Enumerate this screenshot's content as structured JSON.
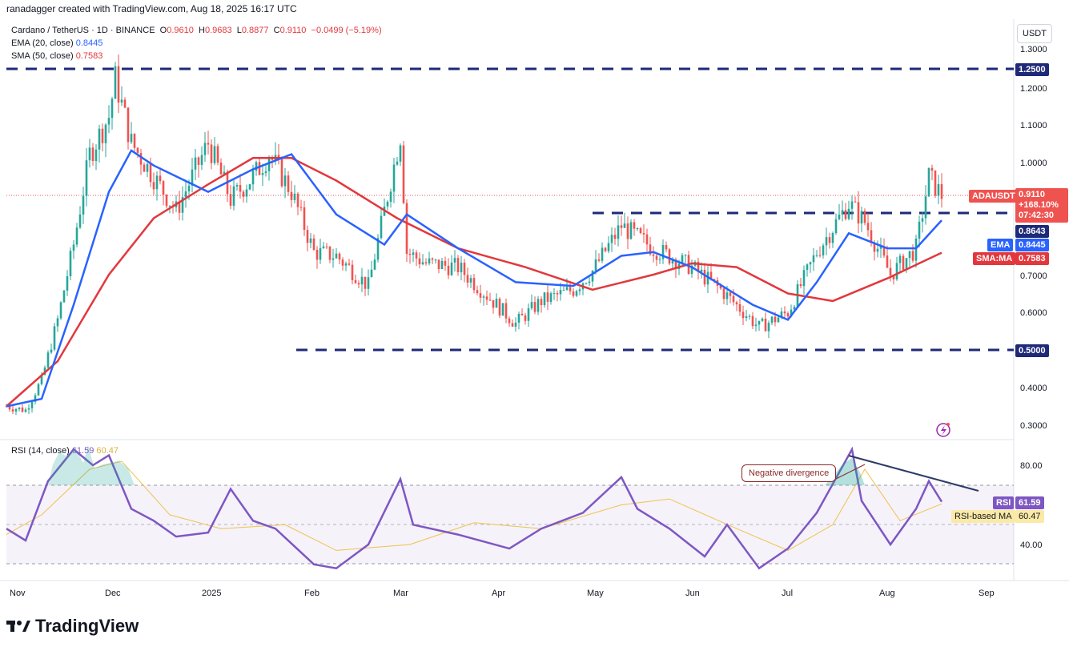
{
  "header": {
    "attribution": "ranadagger created with TradingView.com, Aug 18, 2025 16:17 UTC"
  },
  "legend": {
    "symbol": "Cardano / TetherUS · 1D · BINANCE",
    "o_label": "O",
    "o_value": "0.9610",
    "h_label": "H",
    "h_value": "0.9683",
    "l_label": "L",
    "l_value": "0.8877",
    "c_label": "C",
    "c_value": "0.9110",
    "change": "−0.0499 (−5.19%)",
    "ema_label": "EMA (20, close)",
    "ema_value": "0.8445",
    "sma_label": "SMA (50, close)",
    "sma_value": "0.7583",
    "rsi_label": "RSI (14, close)",
    "rsi_value": "61.59",
    "rsi_ma_value": "60.47"
  },
  "currency_button": "USDT",
  "price_tags": {
    "symbol_name": "ADAUSDT",
    "price": "0.9110",
    "percent": "+168.10%",
    "countdown": "07:42:30",
    "resistance": "0.8643",
    "ema_name": "EMA",
    "ema_value": "0.8445",
    "sma_name": "SMA:MA",
    "sma_value": "0.7583",
    "top_level": "1.2500",
    "bottom_level": "0.5000",
    "rsi_name": "RSI",
    "rsi_value": "61.59",
    "rsi_ma_name": "RSI-based MA",
    "rsi_ma_value": "60.47"
  },
  "annotation": "Negative divergence",
  "brand": "TradingView",
  "colors": {
    "up": "#26a69a",
    "down": "#ef5350",
    "ema": "#2962ff",
    "sma": "#e2383d",
    "level": "#1e2a78",
    "rsi": "#7e57c2",
    "rsi_ma": "#f0c24a",
    "trend": "#2b3a67"
  },
  "chart_data": [
    {
      "type": "line",
      "title": "Cardano / TetherUS · 1D · BINANCE",
      "x_ticks": [
        "Nov",
        "Dec",
        "2025",
        "Feb",
        "Mar",
        "Apr",
        "May",
        "Jun",
        "Jul",
        "Aug",
        "Sep"
      ],
      "y_ticks": [
        "1.3000",
        "1.2000",
        "1.1000",
        "1.0000",
        "0.9000",
        "0.8000",
        "0.7000",
        "0.6000",
        "0.5000",
        "0.4000",
        "0.3000"
      ],
      "ylim": [
        0.26,
        1.36
      ],
      "horizontal_levels": [
        1.25,
        0.864,
        0.5
      ],
      "series": [
        {
          "name": "ADAUSDT",
          "x": [
            "2024-10-30",
            "2024-11-05",
            "2024-11-10",
            "2024-11-15",
            "2024-11-20",
            "2024-11-25",
            "2024-12-01",
            "2024-12-03",
            "2024-12-08",
            "2024-12-15",
            "2024-12-22",
            "2025-01-01",
            "2025-01-08",
            "2025-01-15",
            "2025-01-20",
            "2025-01-27",
            "2025-02-03",
            "2025-02-10",
            "2025-02-20",
            "2025-03-02",
            "2025-03-04",
            "2025-03-10",
            "2025-03-20",
            "2025-04-01",
            "2025-04-07",
            "2025-04-15",
            "2025-04-25",
            "2025-05-01",
            "2025-05-10",
            "2025-05-20",
            "2025-06-01",
            "2025-06-10",
            "2025-06-22",
            "2025-07-01",
            "2025-07-10",
            "2025-07-20",
            "2025-07-25",
            "2025-08-02",
            "2025-08-10",
            "2025-08-14",
            "2025-08-18"
          ],
          "values": [
            0.35,
            0.34,
            0.42,
            0.58,
            0.78,
            1.02,
            1.12,
            1.22,
            1.05,
            0.96,
            0.87,
            1.05,
            0.9,
            0.96,
            1.02,
            0.92,
            0.76,
            0.75,
            0.67,
            1.07,
            0.76,
            0.73,
            0.72,
            0.62,
            0.57,
            0.63,
            0.66,
            0.71,
            0.83,
            0.77,
            0.72,
            0.66,
            0.56,
            0.6,
            0.76,
            0.89,
            0.84,
            0.7,
            0.77,
            0.96,
            0.911
          ]
        },
        {
          "name": "EMA (20, close)",
          "x": [
            "2024-10-30",
            "2024-11-10",
            "2024-11-20",
            "2024-12-01",
            "2024-12-08",
            "2024-12-15",
            "2025-01-01",
            "2025-01-15",
            "2025-01-27",
            "2025-02-10",
            "2025-02-25",
            "2025-03-04",
            "2025-03-20",
            "2025-04-07",
            "2025-04-25",
            "2025-05-10",
            "2025-05-20",
            "2025-06-01",
            "2025-06-20",
            "2025-07-01",
            "2025-07-10",
            "2025-07-20",
            "2025-08-01",
            "2025-08-10",
            "2025-08-18"
          ],
          "values": [
            0.35,
            0.37,
            0.62,
            0.92,
            1.03,
            0.99,
            0.92,
            0.98,
            1.02,
            0.86,
            0.78,
            0.86,
            0.77,
            0.68,
            0.67,
            0.75,
            0.76,
            0.72,
            0.62,
            0.58,
            0.68,
            0.81,
            0.77,
            0.77,
            0.8445
          ]
        },
        {
          "name": "SMA (50, close)",
          "x": [
            "2024-10-30",
            "2024-11-15",
            "2024-12-01",
            "2024-12-15",
            "2025-01-01",
            "2025-01-15",
            "2025-01-27",
            "2025-02-10",
            "2025-03-01",
            "2025-03-20",
            "2025-04-10",
            "2025-05-01",
            "2025-05-20",
            "2025-06-01",
            "2025-06-15",
            "2025-07-01",
            "2025-07-15",
            "2025-08-01",
            "2025-08-18"
          ],
          "values": [
            0.35,
            0.47,
            0.7,
            0.85,
            0.94,
            1.01,
            1.01,
            0.95,
            0.85,
            0.77,
            0.72,
            0.66,
            0.7,
            0.73,
            0.72,
            0.65,
            0.63,
            0.69,
            0.7583
          ]
        }
      ]
    },
    {
      "type": "line",
      "title": "RSI (14, close)",
      "y_ticks": [
        "80.00",
        "40.00"
      ],
      "ylim": [
        25,
        95
      ],
      "bands": [
        70,
        50,
        30
      ],
      "series": [
        {
          "name": "RSI",
          "x": [
            "2024-10-30",
            "2024-11-05",
            "2024-11-12",
            "2024-11-20",
            "2024-11-26",
            "2024-12-01",
            "2024-12-08",
            "2024-12-15",
            "2024-12-22",
            "2025-01-01",
            "2025-01-08",
            "2025-01-15",
            "2025-01-22",
            "2025-02-03",
            "2025-02-10",
            "2025-02-20",
            "2025-03-02",
            "2025-03-06",
            "2025-03-20",
            "2025-04-05",
            "2025-04-15",
            "2025-04-28",
            "2025-05-10",
            "2025-05-15",
            "2025-05-25",
            "2025-06-05",
            "2025-06-12",
            "2025-06-22",
            "2025-07-01",
            "2025-07-10",
            "2025-07-21",
            "2025-07-24",
            "2025-08-02",
            "2025-08-10",
            "2025-08-14",
            "2025-08-18"
          ],
          "values": [
            48,
            42,
            72,
            88,
            80,
            85,
            58,
            52,
            44,
            46,
            68,
            52,
            48,
            30,
            28,
            40,
            73,
            50,
            45,
            38,
            48,
            56,
            74,
            58,
            48,
            34,
            50,
            28,
            38,
            56,
            88,
            62,
            40,
            58,
            72,
            61.59
          ]
        },
        {
          "name": "RSI-based MA",
          "x": [
            "2024-10-30",
            "2024-11-10",
            "2024-11-25",
            "2024-12-05",
            "2024-12-20",
            "2025-01-05",
            "2025-01-25",
            "2025-02-10",
            "2025-03-05",
            "2025-03-25",
            "2025-04-15",
            "2025-05-10",
            "2025-05-25",
            "2025-06-15",
            "2025-07-01",
            "2025-07-15",
            "2025-07-25",
            "2025-08-05",
            "2025-08-18"
          ],
          "values": [
            45,
            55,
            78,
            82,
            55,
            48,
            50,
            37,
            40,
            51,
            48,
            60,
            63,
            48,
            37,
            50,
            78,
            52,
            60.47
          ]
        }
      ],
      "annotation_trendline": {
        "from": [
          "2025-07-22",
          87
        ],
        "to": [
          "2025-08-28",
          68
        ]
      }
    }
  ]
}
